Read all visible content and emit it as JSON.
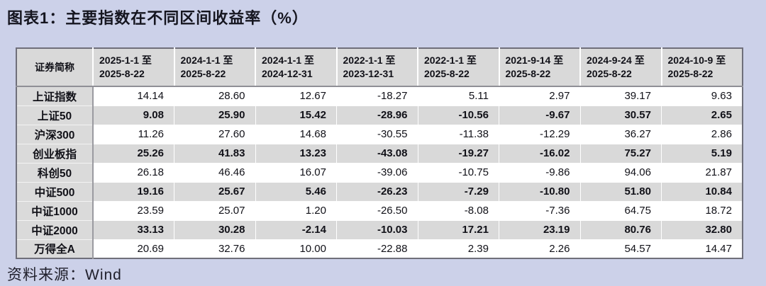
{
  "page": {
    "title": "图表1：主要指数在不同区间收益率（%）",
    "source": "资料来源：Wind"
  },
  "colors": {
    "page_background": "#ccd1e9",
    "header_bg": "#d9d9d9",
    "alt_row_bg": "#d9d9d9",
    "row_bg": "#ffffff",
    "table_border": "#6f6f7a",
    "text": "#111118"
  },
  "table": {
    "name_header": "证券简称",
    "periods": [
      "2025-1-1 至\n2025-8-22",
      "2024-1-1 至\n2025-8-22",
      "2024-1-1 至\n2024-12-31",
      "2022-1-1 至\n2023-12-31",
      "2022-1-1 至\n2025-8-22",
      "2021-9-14 至\n2025-8-22",
      "2024-9-24 至\n2025-8-22",
      "2024-10-9 至\n2025-8-22"
    ],
    "rows": [
      {
        "name": "上证指数",
        "values": [
          "14.14",
          "28.60",
          "12.67",
          "-18.27",
          "5.11",
          "2.97",
          "39.17",
          "9.63"
        ]
      },
      {
        "name": "上证50",
        "values": [
          "9.08",
          "25.90",
          "15.42",
          "-28.96",
          "-10.56",
          "-9.67",
          "30.57",
          "2.65"
        ]
      },
      {
        "name": "沪深300",
        "values": [
          "11.26",
          "27.60",
          "14.68",
          "-30.55",
          "-11.38",
          "-12.29",
          "36.27",
          "2.86"
        ]
      },
      {
        "name": "创业板指",
        "values": [
          "25.26",
          "41.83",
          "13.23",
          "-43.08",
          "-19.27",
          "-16.02",
          "75.27",
          "5.19"
        ]
      },
      {
        "name": "科创50",
        "values": [
          "26.18",
          "46.46",
          "16.07",
          "-39.06",
          "-10.75",
          "-9.86",
          "94.06",
          "21.87"
        ]
      },
      {
        "name": "中证500",
        "values": [
          "19.16",
          "25.67",
          "5.46",
          "-26.23",
          "-7.29",
          "-10.80",
          "51.80",
          "10.84"
        ]
      },
      {
        "name": "中证1000",
        "values": [
          "23.59",
          "25.07",
          "1.20",
          "-26.50",
          "-8.08",
          "-7.36",
          "64.75",
          "18.72"
        ]
      },
      {
        "name": "中证2000",
        "values": [
          "33.13",
          "30.28",
          "-2.14",
          "-10.03",
          "17.21",
          "23.19",
          "80.76",
          "32.80"
        ]
      },
      {
        "name": "万得全A",
        "values": [
          "20.69",
          "32.76",
          "10.00",
          "-22.88",
          "2.39",
          "2.26",
          "54.57",
          "14.47"
        ]
      }
    ]
  },
  "chart_data": {
    "type": "table",
    "title": "主要指数在不同区间收益率（%）",
    "row_header": "证券简称",
    "columns": [
      "2025-1-1 至 2025-8-22",
      "2024-1-1 至 2025-8-22",
      "2024-1-1 至 2024-12-31",
      "2022-1-1 至 2023-12-31",
      "2022-1-1 至 2025-8-22",
      "2021-9-14 至 2025-8-22",
      "2024-9-24 至 2025-8-22",
      "2024-10-9 至 2025-8-22"
    ],
    "rows": [
      {
        "name": "上证指数",
        "values": [
          14.14,
          28.6,
          12.67,
          -18.27,
          5.11,
          2.97,
          39.17,
          9.63
        ]
      },
      {
        "name": "上证50",
        "values": [
          9.08,
          25.9,
          15.42,
          -28.96,
          -10.56,
          -9.67,
          30.57,
          2.65
        ]
      },
      {
        "name": "沪深300",
        "values": [
          11.26,
          27.6,
          14.68,
          -30.55,
          -11.38,
          -12.29,
          36.27,
          2.86
        ]
      },
      {
        "name": "创业板指",
        "values": [
          25.26,
          41.83,
          13.23,
          -43.08,
          -19.27,
          -16.02,
          75.27,
          5.19
        ]
      },
      {
        "name": "科创50",
        "values": [
          26.18,
          46.46,
          16.07,
          -39.06,
          -10.75,
          -9.86,
          94.06,
          21.87
        ]
      },
      {
        "name": "中证500",
        "values": [
          19.16,
          25.67,
          5.46,
          -26.23,
          -7.29,
          -10.8,
          51.8,
          10.84
        ]
      },
      {
        "name": "中证1000",
        "values": [
          23.59,
          25.07,
          1.2,
          -26.5,
          -8.08,
          -7.36,
          64.75,
          18.72
        ]
      },
      {
        "name": "中证2000",
        "values": [
          33.13,
          30.28,
          -2.14,
          -10.03,
          17.21,
          23.19,
          80.76,
          32.8
        ]
      },
      {
        "name": "万得全A",
        "values": [
          20.69,
          32.76,
          10.0,
          -22.88,
          2.39,
          2.26,
          54.57,
          14.47
        ]
      }
    ],
    "source": "Wind"
  }
}
